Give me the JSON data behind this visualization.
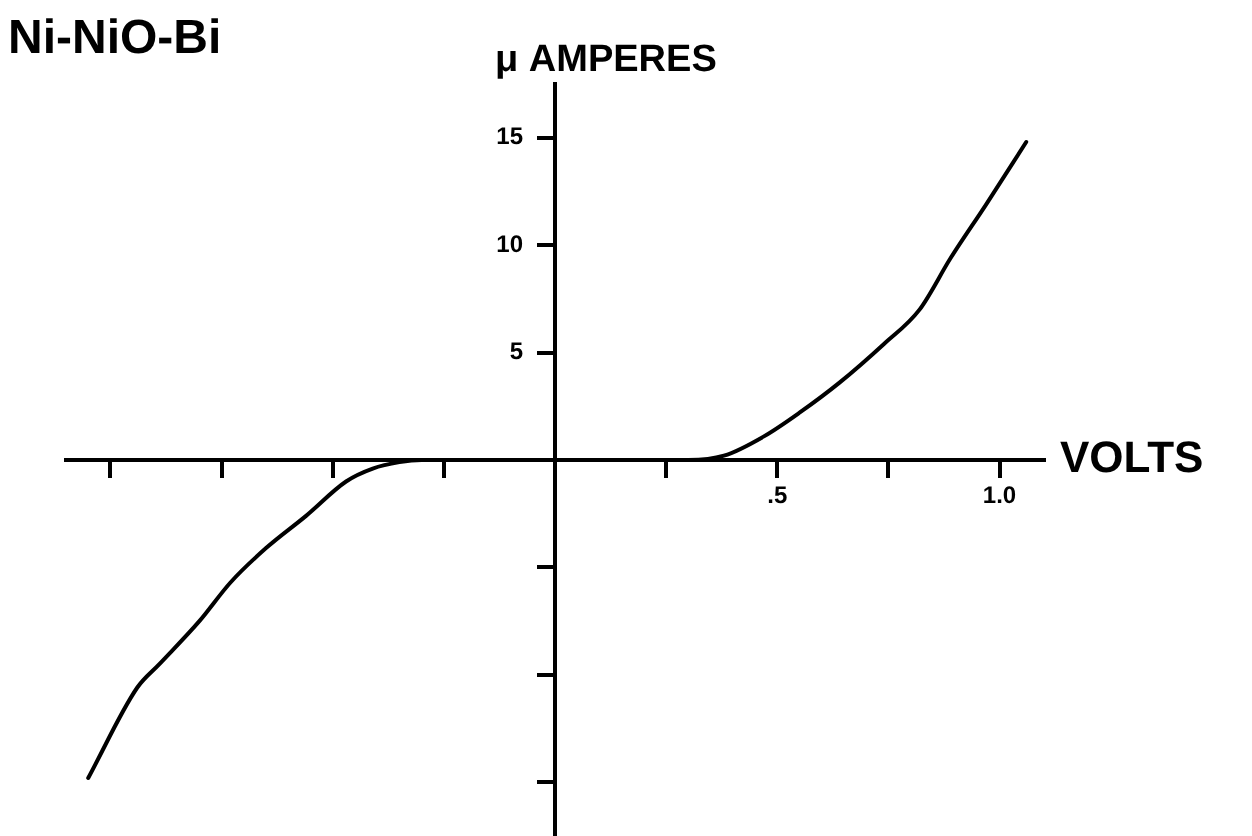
{
  "chart_data": {
    "type": "line",
    "title": "Ni-NiO-Bi",
    "xlabel": "VOLTS",
    "ylabel": "μ AMPERES",
    "x": [
      -1.05,
      -0.94,
      -0.89,
      -0.8,
      -0.73,
      -0.65,
      -0.56,
      -0.47,
      -0.41,
      -0.35,
      -0.3,
      0,
      0.3,
      0.38,
      0.47,
      0.55,
      0.64,
      0.74,
      0.82,
      0.89,
      0.97,
      1.06
    ],
    "series": [
      {
        "color": "#000000",
        "values": [
          -14.8,
          -10.6,
          -9.5,
          -7.5,
          -5.7,
          -4.1,
          -2.6,
          -1.0,
          -0.4,
          -0.1,
          0,
          0,
          0,
          0.2,
          1.1,
          2.2,
          3.6,
          5.4,
          7.0,
          9.4,
          11.9,
          14.8
        ]
      }
    ],
    "xlim": [
      -1.1,
      1.1
    ],
    "ylim": [
      -17.5,
      17.5
    ],
    "xticks": [
      {
        "value": -1,
        "label": null
      },
      {
        "value": -0.75,
        "label": null
      },
      {
        "value": -0.5,
        "label": null
      },
      {
        "value": -0.25,
        "label": null
      },
      {
        "value": 0.25,
        "label": null
      },
      {
        "value": 0.5,
        "label": ".5"
      },
      {
        "value": 0.75,
        "label": null
      },
      {
        "value": 1,
        "label": "1.0"
      }
    ],
    "yticks": [
      {
        "value": -15,
        "label": null
      },
      {
        "value": -10,
        "label": null
      },
      {
        "value": -5,
        "label": null
      },
      5,
      10,
      15
    ],
    "grid": false,
    "legend": false,
    "marker": "none",
    "line_style": "solid"
  }
}
